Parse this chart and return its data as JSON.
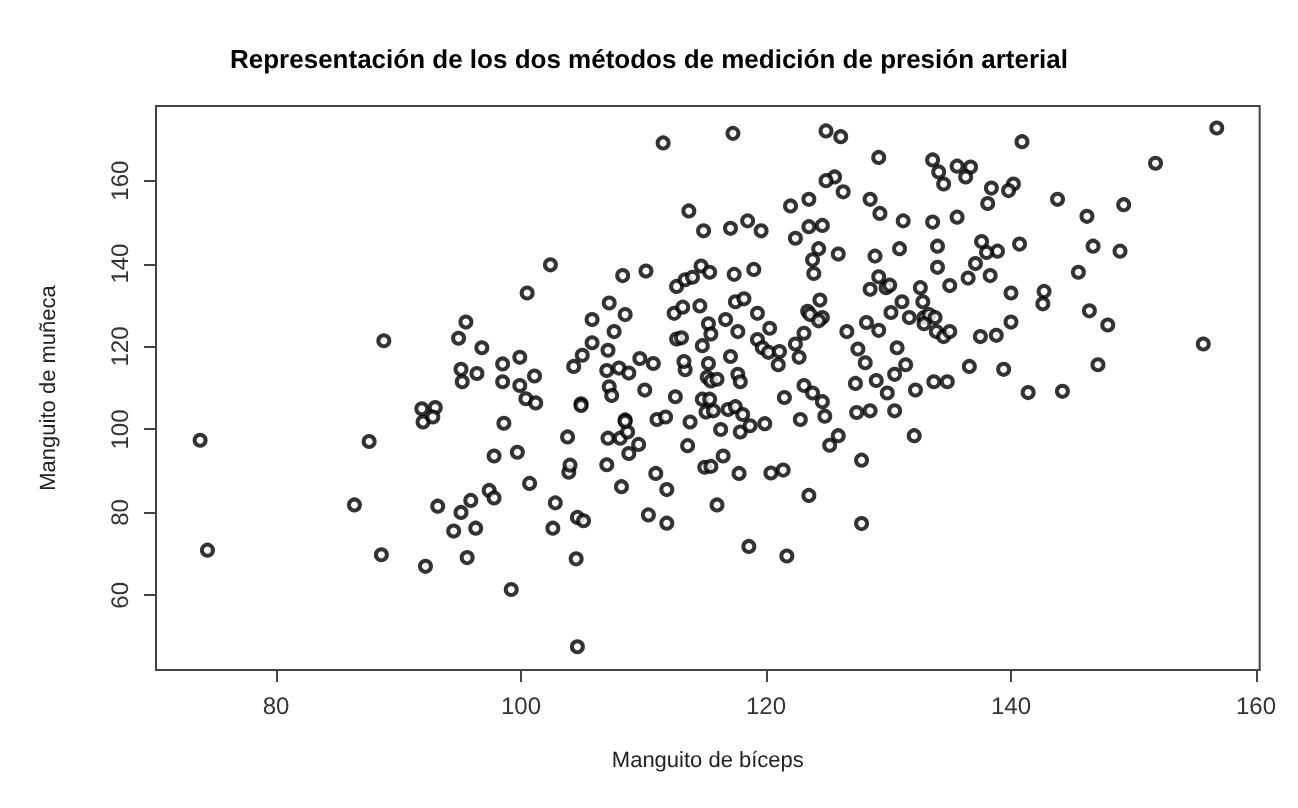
{
  "chart_data": {
    "type": "scatter",
    "title": "Representación de los dos métodos de medición de presión arterial",
    "xlabel": "Manguito de bíceps",
    "ylabel": "Manguito de muñeca",
    "xlim": [
      70.2,
      160.3
    ],
    "ylim": [
      42,
      178
    ],
    "xticks": [
      80,
      100,
      120,
      140,
      160
    ],
    "yticks": [
      60,
      80,
      100,
      120,
      140,
      160
    ],
    "marker": "circle",
    "series": [
      {
        "color": "#000000",
        "x": [
          111.6,
          88.8,
          102.4,
          100.5,
          108.3,
          110.2,
          107.2,
          105.8,
          108.5,
          107.6,
          95.5,
          94.9,
          96.8,
          95.1,
          95.2,
          96.4,
          98.5,
          99.9,
          98.5,
          99.9,
          101.1,
          100.4,
          101.2,
          104.3,
          105.0,
          105.8,
          104.9,
          107.0,
          108.0,
          108.8,
          109.7,
          110.8,
          107.1,
          107.2,
          107.4,
          110.1,
          111.1,
          111.8,
          108.5,
          91.9,
          93.0,
          92.0,
          92.8,
          98.6,
          112.7,
          112.5,
          112.7,
          112.6,
          73.8,
          74.4,
          87.6,
          86.4,
          88.6,
          92.2,
          93.2,
          95.1,
          94.5,
          95.9,
          96.3,
          95.6,
          97.4,
          97.8,
          97.8,
          99.7,
          100.7,
          99.2,
          102.8,
          102.6,
          104.6,
          105.1,
          104.5,
          104.6,
          103.9,
          104.0,
          103.8,
          104.9,
          107.0,
          107.1,
          108.2,
          108.1,
          108.7,
          108.8,
          109.6,
          108.5,
          111.0,
          111.9,
          110.4,
          111.9,
          113.8,
          113.6,
          115.0,
          115.5,
          116.5,
          116.0,
          117.8,
          116.3,
          117.9,
          118.7,
          119.9,
          118.6,
          121.7,
          120.4,
          121.4,
          123.5,
          122.8,
          124.8,
          125.2,
          125.9,
          127.8,
          127.8,
          127.4,
          128.5,
          130.5,
          132.1,
          115.1,
          115.7,
          116.9,
          117.5,
          118.1,
          117.3,
          124.9,
          126.1,
          129.2,
          133.6,
          134.1,
          135.6,
          136.7,
          136.3,
          134.5,
          140.9,
          151.8,
          156.8,
          138.4,
          140.2,
          139.8,
          138.1,
          143.8,
          146.2,
          149.2,
          146.7,
          148.9,
          145.5,
          142.7,
          142.6,
          146.4,
          147.9,
          147.1,
          155.7,
          144.2,
          141.4,
          139.4,
          140.0,
          140.0,
          140.7,
          138.3,
          138.9,
          138.0,
          137.6,
          137.1,
          136.5,
          135.0,
          135.6,
          133.6,
          131.2,
          134.0,
          134.0,
          130.9,
          128.9,
          129.3,
          128.5,
          126.3,
          125.6,
          124.9,
          123.5,
          122.0,
          123.5,
          124.6,
          122.4,
          124.3,
          123.8,
          125.9,
          123.9,
          113.7,
          114.9,
          117.1,
          118.5,
          119.6,
          113.4,
          114.0,
          114.7,
          115.4,
          117.4,
          119.0,
          113.2,
          114.6,
          117.5,
          118.2,
          115.3,
          116.7,
          119.3,
          117.7,
          115.5,
          113.1,
          114.8,
          119.3,
          120.3,
          119.7,
          120.2,
          121.1,
          121.0,
          117.1,
          117.7,
          117.9,
          115.3,
          113.4,
          115.2,
          115.5,
          116.0,
          113.3,
          114.8,
          115.4,
          121.5,
          122.4,
          123.1,
          122.7,
          123.4,
          123.6,
          124.4,
          124.6,
          124.3,
          123.1,
          123.8,
          124.6,
          126.6,
          127.5,
          128.1,
          127.3,
          128.2,
          128.5,
          129.2,
          129.8,
          130.1,
          129.2,
          129.0,
          129.9,
          130.5,
          131.4,
          130.7,
          132.2,
          130.2,
          131.1,
          131.7,
          132.6,
          132.8,
          132.9,
          133.3,
          133.8,
          132.9,
          133.9,
          134.5,
          135.0,
          133.7,
          134.8,
          136.6,
          137.5,
          138.8
        ],
        "values": [
          169.1,
          121.4,
          139.7,
          132.9,
          137.1,
          138.2,
          130.5,
          126.5,
          127.7,
          123.6,
          125.9,
          122.0,
          119.7,
          114.5,
          111.5,
          113.5,
          115.8,
          117.4,
          111.5,
          110.6,
          112.9,
          107.4,
          106.4,
          115.2,
          117.9,
          120.9,
          106.2,
          114.2,
          114.8,
          113.6,
          117.1,
          115.9,
          119.1,
          110.3,
          108.2,
          109.5,
          102.4,
          103.0,
          102.3,
          105.0,
          105.3,
          101.8,
          103.0,
          101.5,
          134.5,
          128.0,
          121.8,
          107.9,
          97.4,
          70.9,
          97.1,
          81.8,
          69.8,
          67.0,
          81.5,
          80.0,
          75.5,
          82.9,
          76.2,
          69.1,
          85.3,
          83.5,
          93.6,
          94.5,
          87.0,
          61.4,
          82.3,
          76.2,
          78.8,
          78.0,
          68.8,
          47.6,
          89.7,
          91.4,
          98.2,
          105.8,
          91.5,
          97.9,
          86.2,
          97.9,
          99.4,
          94.2,
          96.4,
          102.0,
          89.4,
          85.5,
          79.4,
          77.4,
          101.8,
          96.1,
          90.9,
          91.1,
          93.6,
          81.8,
          89.4,
          100.0,
          99.4,
          100.9,
          101.4,
          71.8,
          69.5,
          89.5,
          90.2,
          84.1,
          102.4,
          103.2,
          96.2,
          98.5,
          92.6,
          77.3,
          104.1,
          104.5,
          104.5,
          98.5,
          104.2,
          104.5,
          104.8,
          105.5,
          103.6,
          171.4,
          172.0,
          170.6,
          165.6,
          165.0,
          162.1,
          163.5,
          163.3,
          160.9,
          159.2,
          169.4,
          164.2,
          172.7,
          158.2,
          159.2,
          157.6,
          154.5,
          155.5,
          151.4,
          154.2,
          144.2,
          143.0,
          137.9,
          133.3,
          130.3,
          128.6,
          125.2,
          115.6,
          120.6,
          109.2,
          108.9,
          114.5,
          125.9,
          132.9,
          144.7,
          137.1,
          143.0,
          142.7,
          145.3,
          140.0,
          136.5,
          134.7,
          151.2,
          150.0,
          150.3,
          144.2,
          139.1,
          143.6,
          141.8,
          152.1,
          155.5,
          157.3,
          160.9,
          160.0,
          155.5,
          153.9,
          148.9,
          149.2,
          146.1,
          143.6,
          140.9,
          142.3,
          137.6,
          152.7,
          147.9,
          148.5,
          150.3,
          147.9,
          136.1,
          136.7,
          139.4,
          137.9,
          137.4,
          138.6,
          129.5,
          129.8,
          130.8,
          131.5,
          125.5,
          126.5,
          128.0,
          123.6,
          123.0,
          122.1,
          120.2,
          121.7,
          124.4,
          119.7,
          118.6,
          118.8,
          115.6,
          117.6,
          113.3,
          111.5,
          115.9,
          114.4,
          112.6,
          111.7,
          112.1,
          116.4,
          107.3,
          107.3,
          107.7,
          120.6,
          123.2,
          117.4,
          128.5,
          127.7,
          131.2,
          127.0,
          126.2,
          110.6,
          108.8,
          106.7,
          123.6,
          119.4,
          116.1,
          111.1,
          125.8,
          133.8,
          136.8,
          134.2,
          134.8,
          123.9,
          111.8,
          108.8,
          113.3,
          115.6,
          119.7,
          109.5,
          128.2,
          130.8,
          127.0,
          134.2,
          130.8,
          127.0,
          127.7,
          127.0,
          125.5,
          123.6,
          122.4,
          123.6,
          111.5,
          111.5,
          115.2,
          122.4,
          122.7
        ]
      }
    ]
  }
}
